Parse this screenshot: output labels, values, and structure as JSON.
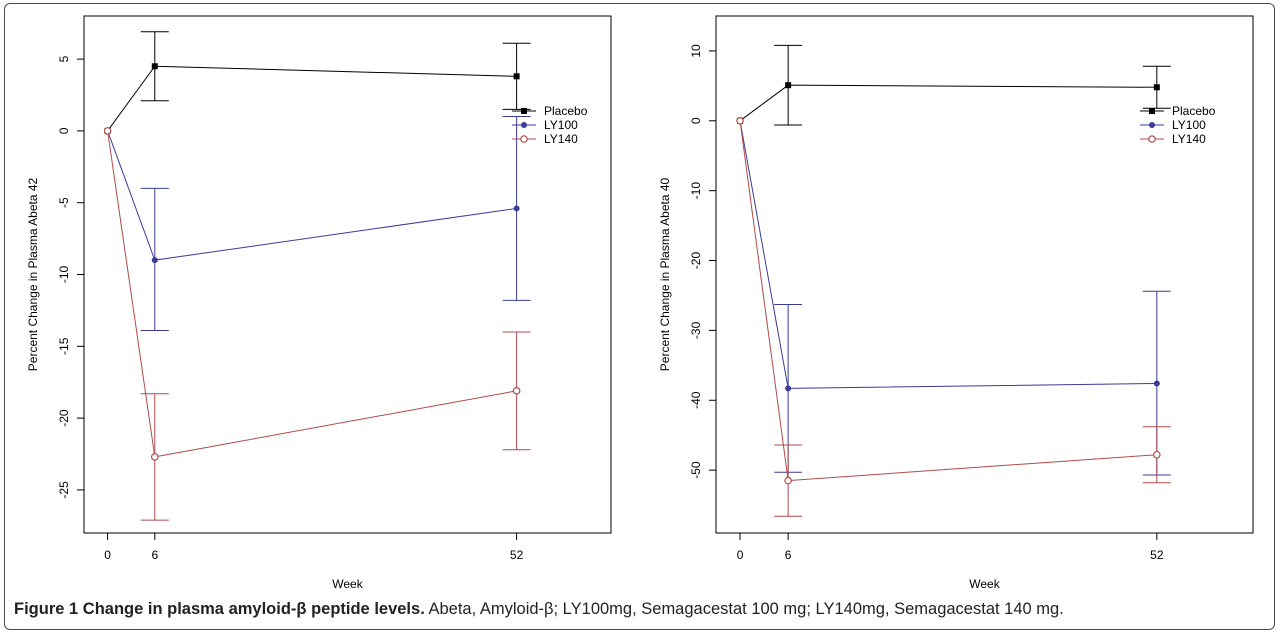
{
  "figure": {
    "label": "Figure 1",
    "title": "Change in plasma amyloid-β peptide levels.",
    "text": "Abeta, Amyloid-β; LY100mg, Semagacestat 100 mg; LY140mg, Semagacestat 140 mg."
  },
  "chart_data": [
    {
      "type": "line",
      "xlabel": "Week",
      "ylabel": "Percent Change in Plasma Abeta 42",
      "x": [
        0,
        6,
        52
      ],
      "xticks": [
        0,
        6,
        52
      ],
      "xlim": [
        -3,
        64
      ],
      "ylim": [
        -28,
        8
      ],
      "yticks": [
        5,
        0,
        -5,
        -10,
        -15,
        -20,
        -25
      ],
      "legend_position": "right",
      "grid": false,
      "series": [
        {
          "name": "Placebo",
          "color": "#000000",
          "marker": "square",
          "values": [
            0,
            4.5,
            3.8
          ],
          "lower": [
            null,
            2.1,
            1.5
          ],
          "upper": [
            null,
            6.9,
            6.1
          ]
        },
        {
          "name": "LY100",
          "color": "#3b3b99",
          "marker": "dot",
          "values": [
            0,
            -9.0,
            -5.4
          ],
          "lower": [
            null,
            -13.9,
            -11.8
          ],
          "upper": [
            null,
            -4.0,
            1.0
          ]
        },
        {
          "name": "LY140",
          "color": "#b04a4a",
          "marker": "circle",
          "values": [
            0,
            -22.7,
            -18.1
          ],
          "lower": [
            null,
            -27.1,
            -22.2
          ],
          "upper": [
            null,
            -18.3,
            -14.0
          ]
        }
      ]
    },
    {
      "type": "line",
      "xlabel": "Week",
      "ylabel": "Percent Change in Plasma Abeta 40",
      "x": [
        0,
        6,
        52
      ],
      "xticks": [
        0,
        6,
        52
      ],
      "xlim": [
        -3,
        64
      ],
      "ylim": [
        -59,
        15
      ],
      "yticks": [
        10,
        0,
        -10,
        -20,
        -30,
        -40,
        -50
      ],
      "legend_position": "right",
      "grid": false,
      "series": [
        {
          "name": "Placebo",
          "color": "#000000",
          "marker": "square",
          "values": [
            0,
            5.1,
            4.8
          ],
          "lower": [
            null,
            -0.6,
            1.8
          ],
          "upper": [
            null,
            10.8,
            7.8
          ]
        },
        {
          "name": "LY100",
          "color": "#3b3b99",
          "marker": "dot",
          "values": [
            0,
            -38.3,
            -37.6
          ],
          "lower": [
            null,
            -50.3,
            -50.7
          ],
          "upper": [
            null,
            -26.3,
            -24.4
          ]
        },
        {
          "name": "LY140",
          "color": "#b04a4a",
          "marker": "circle",
          "values": [
            0,
            -51.5,
            -47.8
          ],
          "lower": [
            null,
            -56.6,
            -51.8
          ],
          "upper": [
            null,
            -46.4,
            -43.8
          ]
        }
      ]
    }
  ]
}
